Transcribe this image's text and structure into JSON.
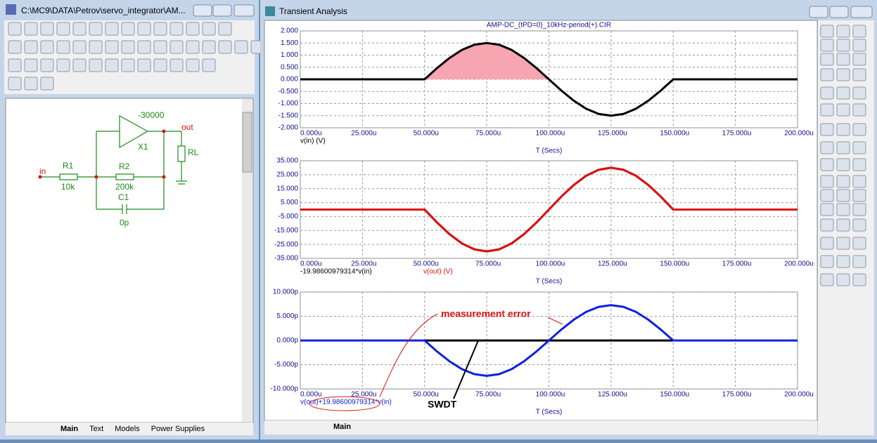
{
  "left_window": {
    "title": "C:\\MC9\\DATA\\Petrov\\servo_integrator\\AM...",
    "schematic": {
      "gain": "-30000",
      "out": "out",
      "x1": "X1",
      "rl": "RL",
      "in": "in",
      "r1": "R1",
      "r1_value": "10k",
      "r2": "R2",
      "r2_value": "200k",
      "c1": "C1",
      "c1_value": "0p"
    },
    "tabs": [
      "Main",
      "Text",
      "Models",
      "Power Supplies"
    ]
  },
  "right_window": {
    "title": "Transient Analysis",
    "tabs": [
      "Main"
    ]
  },
  "chart_data": [
    {
      "type": "line",
      "title": "AMP-DC_(tPD=0)_10kHz-period(+).CIR",
      "x_label": "T (Secs)",
      "x": [
        0,
        50,
        55,
        60,
        65,
        70,
        75,
        80,
        85,
        90,
        95,
        100,
        105,
        110,
        115,
        120,
        125,
        130,
        135,
        140,
        145,
        150,
        200
      ],
      "xlim": [
        0,
        200
      ],
      "xticks": [
        {
          "value": 0,
          "label": "0.000u"
        },
        {
          "value": 25,
          "label": "25.000u"
        },
        {
          "value": 50,
          "label": "50.000u"
        },
        {
          "value": 75,
          "label": "75.000u"
        },
        {
          "value": 100,
          "label": "100.000u"
        },
        {
          "value": 125,
          "label": "125.000u"
        },
        {
          "value": 150,
          "label": "150.000u"
        },
        {
          "value": 175,
          "label": "175.000u"
        },
        {
          "value": 200,
          "label": "200.000u"
        }
      ],
      "ylim": [
        -2,
        2
      ],
      "yticks": [
        {
          "value": 2,
          "label": "2.000"
        },
        {
          "value": 1.5,
          "label": "1.500"
        },
        {
          "value": 1,
          "label": "1.000"
        },
        {
          "value": 0.5,
          "label": "0.500"
        },
        {
          "value": 0,
          "label": "0.000"
        },
        {
          "value": -0.5,
          "label": "-0.500"
        },
        {
          "value": -1,
          "label": "-1.000"
        },
        {
          "value": -1.5,
          "label": "-1.500"
        },
        {
          "value": -2,
          "label": "-2.000"
        }
      ],
      "grid": true,
      "series": [
        {
          "name": "v(in) (V)",
          "color": "#000000",
          "fill_color": "#f6a5b1",
          "values": [
            0,
            0,
            0.464,
            0.882,
            1.214,
            1.427,
            1.5,
            1.427,
            1.214,
            0.882,
            0.464,
            0,
            -0.464,
            -0.882,
            -1.214,
            -1.427,
            -1.5,
            -1.427,
            -1.214,
            -0.882,
            -0.464,
            0,
            0
          ]
        }
      ]
    },
    {
      "type": "line",
      "x_label": "T (Secs)",
      "x": [
        0,
        50,
        55,
        60,
        65,
        70,
        75,
        80,
        85,
        90,
        95,
        100,
        105,
        110,
        115,
        120,
        125,
        130,
        135,
        140,
        145,
        150,
        200
      ],
      "xlim": [
        0,
        200
      ],
      "xticks": [
        {
          "value": 0,
          "label": "0.000u"
        },
        {
          "value": 25,
          "label": "25.000u"
        },
        {
          "value": 50,
          "label": "50.000u"
        },
        {
          "value": 75,
          "label": "75.000u"
        },
        {
          "value": 100,
          "label": "100.000u"
        },
        {
          "value": 125,
          "label": "125.000u"
        },
        {
          "value": 150,
          "label": "150.000u"
        },
        {
          "value": 175,
          "label": "175.000u"
        },
        {
          "value": 200,
          "label": "200.000u"
        }
      ],
      "ylim": [
        -35,
        35
      ],
      "yticks": [
        {
          "value": 35,
          "label": "35.000"
        },
        {
          "value": 25,
          "label": "25.000"
        },
        {
          "value": 15,
          "label": "15.000"
        },
        {
          "value": 5,
          "label": "5.000"
        },
        {
          "value": -5,
          "label": "-5.000"
        },
        {
          "value": -15,
          "label": "-15.000"
        },
        {
          "value": -25,
          "label": "-25.000"
        },
        {
          "value": -35,
          "label": "-35.000"
        }
      ],
      "grid": true,
      "series": [
        {
          "name": "-19.98600979314*v(in)",
          "color": "#000000",
          "values": [
            0,
            0,
            -9.27,
            -17.63,
            -24.27,
            -28.53,
            -30,
            -28.53,
            -24.27,
            -17.63,
            -9.27,
            0,
            9.27,
            17.63,
            24.27,
            28.53,
            30,
            28.53,
            24.27,
            17.63,
            9.27,
            0,
            0
          ]
        },
        {
          "name": "v(out) (V)",
          "color": "#e01010",
          "values": [
            0,
            0,
            -9.27,
            -17.63,
            -24.27,
            -28.53,
            -30,
            -28.53,
            -24.27,
            -17.63,
            -9.27,
            0,
            9.27,
            17.63,
            24.27,
            28.53,
            30,
            28.53,
            24.27,
            17.63,
            9.27,
            0,
            0
          ]
        }
      ]
    },
    {
      "type": "line",
      "x_label": "T (Secs)",
      "x": [
        0,
        50,
        55,
        60,
        65,
        70,
        75,
        80,
        85,
        90,
        95,
        100,
        105,
        110,
        115,
        120,
        125,
        130,
        135,
        140,
        145,
        150,
        200
      ],
      "xlim": [
        0,
        200
      ],
      "xticks": [
        {
          "value": 0,
          "label": "0.000u"
        },
        {
          "value": 25,
          "label": "25.000u"
        },
        {
          "value": 50,
          "label": "50.000u"
        },
        {
          "value": 75,
          "label": "75.000u"
        },
        {
          "value": 100,
          "label": "100.000u"
        },
        {
          "value": 125,
          "label": "125.000u"
        },
        {
          "value": 150,
          "label": "150.000u"
        },
        {
          "value": 175,
          "label": "175.000u"
        },
        {
          "value": 200,
          "label": "200.000u"
        }
      ],
      "ylim": [
        -10,
        10
      ],
      "yticks": [
        {
          "value": 10,
          "label": "10.000p"
        },
        {
          "value": 5,
          "label": "5.000p"
        },
        {
          "value": 0,
          "label": "0.000p"
        },
        {
          "value": -5,
          "label": "-5.000p"
        },
        {
          "value": -10,
          "label": "-10.000p"
        }
      ],
      "grid": true,
      "annotations": [
        "measurement error",
        "SWDT"
      ],
      "series": [
        {
          "color": "#000000",
          "values": [
            null,
            0,
            0,
            0,
            0,
            0,
            0,
            0,
            0,
            0,
            0,
            0,
            0,
            0,
            0,
            0,
            0,
            0,
            0,
            0,
            0,
            0,
            null
          ]
        },
        {
          "name": "v(out)+19.98600979314*v(in)",
          "color": "#1020e0",
          "values": [
            0,
            0,
            -2.26,
            -4.29,
            -5.91,
            -6.94,
            -7.3,
            -6.94,
            -5.91,
            -4.29,
            -2.26,
            0,
            2.26,
            4.29,
            5.91,
            6.94,
            7.3,
            6.94,
            5.91,
            4.29,
            2.26,
            0,
            0
          ]
        }
      ]
    }
  ]
}
